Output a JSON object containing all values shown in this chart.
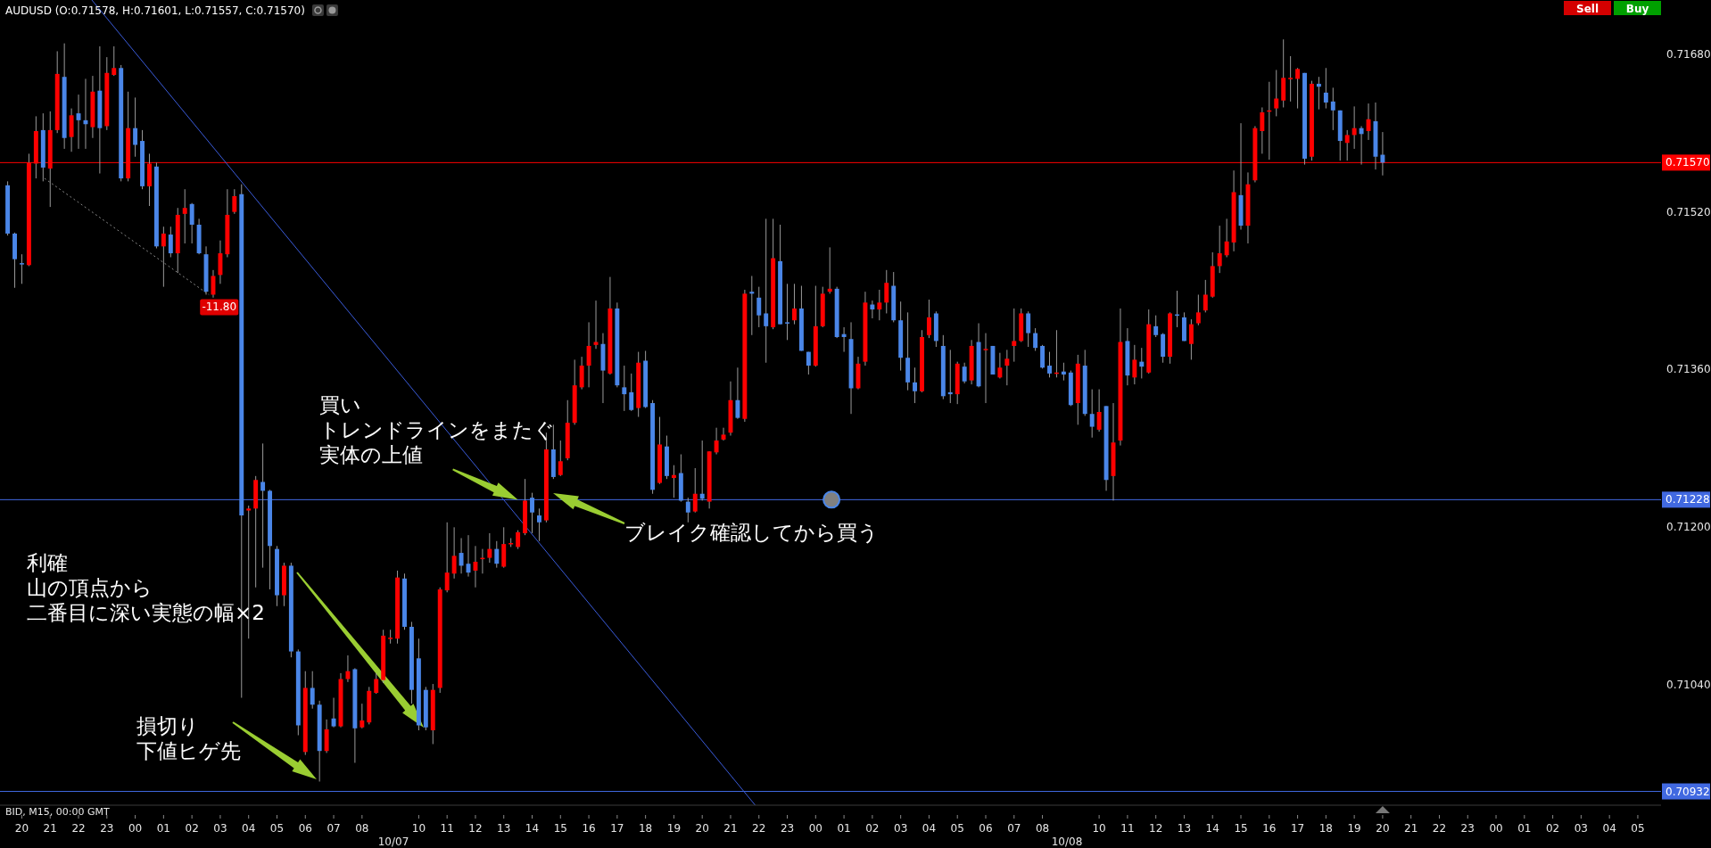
{
  "chart_data": {
    "type": "candlestick",
    "title": "AUDUSD (O:0.71578, H:0.71601, L:0.71557, C:0.71570)",
    "colors": [
      "#4a86e8",
      "#4a86e8",
      "#4a86e8",
      "#ff0000",
      "#ff0000",
      "#4a86e8",
      "#ff0000",
      "#ff0000",
      "#4a86e8",
      "#ff0000",
      "#4a86e8",
      "#4a86e8",
      "#ff0000",
      "#4a86e8",
      "#ff0000",
      "#ff0000",
      "#4a86e8",
      "#ff0000",
      "#4a86e8",
      "#4a86e8",
      "#ff0000",
      "#4a86e8",
      "#ff0000",
      "#4a86e8",
      "#ff0000",
      "#ff0000",
      "#4a86e8",
      "#4a86e8",
      "#4a86e8",
      "#ff0000",
      "#ff0000",
      "#ff0000",
      "#ff0000",
      "#4a86e8",
      "#ff0000",
      "#ff0000",
      "#4a86e8",
      "#4a86e8",
      "#4a86e8",
      "#ff0000",
      "#4a86e8",
      "#4a86e8",
      "#ff0000",
      "#4a86e8",
      "#4a86e8",
      "#ff0000",
      "#4a86e8",
      "#ff0000",
      "#ff0000",
      "#4a86e8",
      "#ff0000",
      "#ff0000",
      "#ff0000",
      "#ff0000",
      "#ff0000",
      "#ff0000",
      "#4a86e8",
      "#4a86e8",
      "#4a86e8",
      "#4a86e8",
      "#ff0000",
      "#ff0000",
      "#ff0000",
      "#ff0000",
      "#4a86e8",
      "#4a86e8",
      "#ff0000",
      "#ff0000",
      "#ff0000",
      "#4a86e8",
      "#ff0000",
      "#ff0000",
      "#ff0000",
      "#ff0000",
      "#4a86e8",
      "#4a86e8",
      "#ff0000",
      "#4a86e8",
      "#ff0000",
      "#ff0000",
      "#ff0000",
      "#ff0000",
      "#ff0000",
      "#ff0000",
      "#4a86e8",
      "#ff0000",
      "#4a86e8",
      "#4a86e8",
      "#4a86e8",
      "#ff0000",
      "#4a86e8",
      "#4a86e8",
      "#ff0000",
      "#4a86e8",
      "#ff0000",
      "#4a86e8",
      "#4a86e8",
      "#ff0000",
      "#4a86e8",
      "#ff0000",
      "#ff0000",
      "#ff0000",
      "#ff0000",
      "#4a86e8",
      "#ff0000",
      "#4a86e8",
      "#4a86e8",
      "#4a86e8",
      "#ff0000",
      "#4a86e8",
      "#4a86e8",
      "#ff0000",
      "#4a86e8",
      "#4a86e8",
      "#ff0000",
      "#ff0000",
      "#ff0000",
      "#4a86e8",
      "#4a86e8",
      "#4a86e8",
      "#ff0000",
      "#ff0000",
      "#4a86e8",
      "#ff0000",
      "#ff0000",
      "#4a86e8",
      "#4a86e8",
      "#4a86e8",
      "#4a86e8",
      "#ff0000",
      "#ff0000",
      "#4a86e8",
      "#4a86e8",
      "#4a86e8",
      "#ff0000",
      "#4a86e8",
      "#ff0000",
      "#4a86e8",
      "#ff0000",
      "#4a86e8",
      "#ff0000",
      "#ff0000",
      "#ff0000",
      "#ff0000",
      "#4a86e8",
      "#4a86e8",
      "#4a86e8",
      "#4a86e8",
      "#ff0000",
      "#4a86e8",
      "#4a86e8",
      "#ff0000",
      "#4a86e8",
      "#4a86e8",
      "#ff0000",
      "#4a86e8",
      "#ff0000",
      "#ff0000",
      "#4a86e8",
      "#ff0000",
      "#4a86e8",
      "#ff0000",
      "#4a86e8",
      "#4a86e8",
      "#ff0000",
      "#4a86e8",
      "#4a86e8",
      "#ff0000",
      "#ff0000",
      "#ff0000",
      "#ff0000",
      "#ff0000",
      "#ff0000",
      "#ff0000",
      "#4a86e8",
      "#ff0000",
      "#ff0000",
      "#ff0000",
      "#ff0000",
      "#ff0000",
      "#ff0000",
      "#ff0000",
      "#ff0000",
      "#4a86e8",
      "#ff0000",
      "#4a86e8",
      "#4a86e8",
      "#4a86e8",
      "#4a86e8",
      "#ff0000",
      "#ff0000",
      "#4a86e8",
      "#ff0000",
      "#4a86e8",
      "#4a86e8"
    ],
    "xlim": [
      19.23,
      77.82
    ],
    "ylim": [
      0.70918,
      0.71735
    ],
    "yticks": [
      {
        "value": 0.7168,
        "label": "0.71680"
      },
      {
        "value": 0.7152,
        "label": "0.71520"
      },
      {
        "value": 0.7136,
        "label": "0.71360"
      },
      {
        "value": 0.712,
        "label": "0.71200"
      },
      {
        "value": 0.7104,
        "label": "0.71040"
      }
    ],
    "xticks": [
      {
        "value": 20,
        "label": "20"
      },
      {
        "value": 21,
        "label": "21"
      },
      {
        "value": 22,
        "label": "22"
      },
      {
        "value": 23,
        "label": "23"
      },
      {
        "value": 24,
        "label": "00"
      },
      {
        "value": 25,
        "label": "01"
      },
      {
        "value": 26,
        "label": "02"
      },
      {
        "value": 27,
        "label": "03"
      },
      {
        "value": 28,
        "label": "04"
      },
      {
        "value": 29,
        "label": "05"
      },
      {
        "value": 30,
        "label": "06"
      },
      {
        "value": 31,
        "label": "07"
      },
      {
        "value": 32,
        "label": "08"
      },
      {
        "value": 34,
        "label": "10"
      },
      {
        "value": 35,
        "label": "11"
      },
      {
        "value": 36,
        "label": "12"
      },
      {
        "value": 37,
        "label": "13"
      },
      {
        "value": 38,
        "label": "14"
      },
      {
        "value": 39,
        "label": "15"
      },
      {
        "value": 40,
        "label": "16"
      },
      {
        "value": 41,
        "label": "17"
      },
      {
        "value": 42,
        "label": "18"
      },
      {
        "value": 43,
        "label": "19"
      },
      {
        "value": 44,
        "label": "20"
      },
      {
        "value": 45,
        "label": "21"
      },
      {
        "value": 46,
        "label": "22"
      },
      {
        "value": 47,
        "label": "23"
      },
      {
        "value": 48,
        "label": "00"
      },
      {
        "value": 49,
        "label": "01"
      },
      {
        "value": 50,
        "label": "02"
      },
      {
        "value": 51,
        "label": "03"
      },
      {
        "value": 52,
        "label": "04"
      },
      {
        "value": 53,
        "label": "05"
      },
      {
        "value": 54,
        "label": "06"
      },
      {
        "value": 55,
        "label": "07"
      },
      {
        "value": 56,
        "label": "08"
      },
      {
        "value": 58,
        "label": "10"
      },
      {
        "value": 59,
        "label": "11"
      },
      {
        "value": 60,
        "label": "12"
      },
      {
        "value": 61,
        "label": "13"
      },
      {
        "value": 62,
        "label": "14"
      },
      {
        "value": 63,
        "label": "15"
      },
      {
        "value": 64,
        "label": "16"
      },
      {
        "value": 65,
        "label": "17"
      },
      {
        "value": 66,
        "label": "18"
      },
      {
        "value": 67,
        "label": "19"
      },
      {
        "value": 68,
        "label": "20"
      },
      {
        "value": 69,
        "label": "21"
      },
      {
        "value": 70,
        "label": "22"
      },
      {
        "value": 71,
        "label": "23"
      },
      {
        "value": 72,
        "label": "00"
      },
      {
        "value": 73,
        "label": "01"
      },
      {
        "value": 74,
        "label": "02"
      },
      {
        "value": 75,
        "label": "03"
      },
      {
        "value": 76,
        "label": "04"
      },
      {
        "value": 77,
        "label": "05"
      }
    ],
    "x": [
      19.5,
      19.75,
      20,
      20.25,
      20.5,
      20.75,
      21,
      21.25,
      21.5,
      21.75,
      22,
      22.25,
      22.5,
      22.75,
      23,
      23.25,
      23.5,
      23.75,
      24,
      24.25,
      24.5,
      24.75,
      25,
      25.25,
      25.5,
      25.75,
      26,
      26.25,
      26.5,
      26.75,
      27,
      27.25,
      27.5,
      27.75,
      28,
      28.25,
      28.5,
      28.75,
      29,
      29.25,
      29.5,
      29.75,
      30,
      30.25,
      30.5,
      30.75,
      31,
      31.25,
      31.5,
      31.75,
      32,
      32.25,
      32.5,
      32.75,
      33,
      33.25,
      33.5,
      33.75,
      34,
      34.25,
      34.5,
      34.75,
      35,
      35.25,
      35.5,
      35.75,
      36,
      36.25,
      36.5,
      36.75,
      37,
      37.25,
      37.5,
      37.75,
      38,
      38.25,
      38.5,
      38.75,
      39,
      39.25,
      39.5,
      39.75,
      40,
      40.25,
      40.5,
      40.75,
      41,
      41.25,
      41.5,
      41.75,
      42,
      42.25,
      42.5,
      42.75,
      43,
      43.25,
      43.5,
      43.75,
      44,
      44.25,
      44.5,
      44.75,
      45,
      45.25,
      45.5,
      45.75,
      46,
      46.25,
      46.5,
      46.75,
      47,
      47.25,
      47.5,
      47.75,
      48,
      48.25,
      48.5,
      48.75,
      49,
      49.25,
      49.5,
      49.75,
      50,
      50.25,
      50.5,
      50.75,
      51,
      51.25,
      51.5,
      51.75,
      52,
      52.25,
      52.5,
      52.75,
      53,
      53.25,
      53.5,
      53.75,
      54,
      54.25,
      54.5,
      54.75,
      55,
      55.25,
      55.5,
      55.75,
      56,
      56.25,
      56.5,
      56.75,
      57,
      57.25,
      57.5,
      57.75,
      58,
      58.25,
      58.5,
      58.75,
      59,
      59.25,
      59.5,
      59.75,
      60,
      60.25,
      60.5,
      60.75,
      61,
      61.25,
      61.5,
      61.75,
      62,
      62.25,
      62.5,
      62.75,
      63,
      63.25,
      63.5,
      63.75,
      64,
      64.25,
      64.5,
      64.75,
      65,
      65.25,
      65.5,
      65.75,
      66,
      66.25,
      66.5,
      66.75,
      67,
      67.25,
      67.5,
      67.75,
      68
    ],
    "ohlc": [
      [
        0.71547,
        0.71551,
        0.71496,
        0.71498
      ],
      [
        0.71498,
        0.71499,
        0.71443,
        0.71472
      ],
      [
        0.71468,
        0.71477,
        0.71447,
        0.71468
      ],
      [
        0.71466,
        0.71579,
        0.71465,
        0.7157
      ],
      [
        0.71569,
        0.71617,
        0.71554,
        0.71602
      ],
      [
        0.71603,
        0.7162,
        0.71551,
        0.71565
      ],
      [
        0.71564,
        0.71622,
        0.71525,
        0.71603
      ],
      [
        0.71603,
        0.71683,
        0.716,
        0.7166
      ],
      [
        0.71657,
        0.71691,
        0.71584,
        0.71595
      ],
      [
        0.71596,
        0.71625,
        0.71581,
        0.71618
      ],
      [
        0.7162,
        0.71639,
        0.71584,
        0.71613
      ],
      [
        0.71613,
        0.71655,
        0.71584,
        0.71609
      ],
      [
        0.71606,
        0.71658,
        0.71595,
        0.71642
      ],
      [
        0.71643,
        0.71688,
        0.71559,
        0.71605
      ],
      [
        0.71607,
        0.71677,
        0.71603,
        0.71661
      ],
      [
        0.71659,
        0.71688,
        0.71658,
        0.71666
      ],
      [
        0.71666,
        0.71669,
        0.71551,
        0.71554
      ],
      [
        0.71554,
        0.71642,
        0.71551,
        0.71605
      ],
      [
        0.71605,
        0.71636,
        0.71576,
        0.71588
      ],
      [
        0.71592,
        0.71603,
        0.71543,
        0.71546
      ],
      [
        0.71546,
        0.71579,
        0.71526,
        0.71569
      ],
      [
        0.71566,
        0.7157,
        0.71483,
        0.71485
      ],
      [
        0.71485,
        0.71505,
        0.71444,
        0.71498
      ],
      [
        0.71497,
        0.71505,
        0.71474,
        0.71478
      ],
      [
        0.71478,
        0.71524,
        0.71458,
        0.71517
      ],
      [
        0.71518,
        0.71543,
        0.71488,
        0.71524
      ],
      [
        0.71528,
        0.71529,
        0.71488,
        0.71507
      ],
      [
        0.71507,
        0.71513,
        0.71477,
        0.71478
      ],
      [
        0.71477,
        0.71485,
        0.71436,
        0.71439
      ],
      [
        0.71436,
        0.71461,
        0.71433,
        0.71455
      ],
      [
        0.71456,
        0.71491,
        0.71447,
        0.71478
      ],
      [
        0.71477,
        0.71543,
        0.71474,
        0.71517
      ],
      [
        0.7152,
        0.71543,
        0.71518,
        0.71536
      ],
      [
        0.71538,
        0.71548,
        0.71027,
        0.71212
      ],
      [
        0.71217,
        0.71222,
        0.71087,
        0.71219
      ],
      [
        0.71219,
        0.71252,
        0.71139,
        0.71248
      ],
      [
        0.71246,
        0.71285,
        0.71159,
        0.71237
      ],
      [
        0.71237,
        0.71238,
        0.71137,
        0.71181
      ],
      [
        0.71178,
        0.71181,
        0.7112,
        0.71131
      ],
      [
        0.71131,
        0.71164,
        0.7112,
        0.71161
      ],
      [
        0.71161,
        0.71164,
        0.71068,
        0.71074
      ],
      [
        0.71074,
        0.71076,
        0.70989,
        0.70999
      ],
      [
        0.70972,
        0.71054,
        0.70969,
        0.71037
      ],
      [
        0.71037,
        0.71054,
        0.71016,
        0.7102
      ],
      [
        0.7102,
        0.71024,
        0.70942,
        0.70973
      ],
      [
        0.70973,
        0.71005,
        0.70971,
        0.70995
      ],
      [
        0.71006,
        0.71027,
        0.70997,
        0.70998
      ],
      [
        0.70998,
        0.71052,
        0.70997,
        0.71046
      ],
      [
        0.71046,
        0.7107,
        0.71043,
        0.71054
      ],
      [
        0.71056,
        0.71057,
        0.70961,
        0.70996
      ],
      [
        0.70997,
        0.71021,
        0.70996,
        0.71004
      ],
      [
        0.71002,
        0.71038,
        0.71,
        0.71034
      ],
      [
        0.71032,
        0.71052,
        0.71031,
        0.71046
      ],
      [
        0.71045,
        0.71096,
        0.71042,
        0.7109
      ],
      [
        0.71087,
        0.71096,
        0.71082,
        0.71088
      ],
      [
        0.71087,
        0.71156,
        0.71082,
        0.71149
      ],
      [
        0.71148,
        0.71153,
        0.71096,
        0.71099
      ],
      [
        0.71099,
        0.71104,
        0.71021,
        0.71035
      ],
      [
        0.71067,
        0.71087,
        0.70994,
        0.70999
      ],
      [
        0.71035,
        0.71038,
        0.70994,
        0.70997
      ],
      [
        0.70994,
        0.71041,
        0.7098,
        0.71035
      ],
      [
        0.71037,
        0.71139,
        0.71032,
        0.71137
      ],
      [
        0.71136,
        0.71205,
        0.71134,
        0.71154
      ],
      [
        0.71153,
        0.712,
        0.71148,
        0.71171
      ],
      [
        0.71174,
        0.71189,
        0.71153,
        0.71161
      ],
      [
        0.71163,
        0.71192,
        0.7115,
        0.71154
      ],
      [
        0.71156,
        0.71181,
        0.71139,
        0.71165
      ],
      [
        0.71168,
        0.71178,
        0.71153,
        0.71169
      ],
      [
        0.71169,
        0.71194,
        0.71164,
        0.71178
      ],
      [
        0.71178,
        0.71186,
        0.71159,
        0.71163
      ],
      [
        0.7116,
        0.712,
        0.71159,
        0.71183
      ],
      [
        0.71183,
        0.71189,
        0.7118,
        0.71184
      ],
      [
        0.7118,
        0.71197,
        0.71178,
        0.71195
      ],
      [
        0.71194,
        0.71249,
        0.71192,
        0.71227
      ],
      [
        0.7123,
        0.71235,
        0.71194,
        0.71215
      ],
      [
        0.71212,
        0.71219,
        0.71186,
        0.71205
      ],
      [
        0.71207,
        0.71296,
        0.71205,
        0.71279
      ],
      [
        0.71279,
        0.71304,
        0.71249,
        0.71251
      ],
      [
        0.71253,
        0.71288,
        0.71252,
        0.71267
      ],
      [
        0.7127,
        0.71329,
        0.71268,
        0.71306
      ],
      [
        0.71306,
        0.7137,
        0.71304,
        0.71344
      ],
      [
        0.71342,
        0.71373,
        0.7134,
        0.71364
      ],
      [
        0.71364,
        0.71408,
        0.71342,
        0.71384
      ],
      [
        0.71385,
        0.7143,
        0.71381,
        0.71388
      ],
      [
        0.71386,
        0.71397,
        0.71326,
        0.71359
      ],
      [
        0.71356,
        0.71454,
        0.71355,
        0.71422
      ],
      [
        0.71422,
        0.71428,
        0.71342,
        0.71344
      ],
      [
        0.71342,
        0.71364,
        0.71318,
        0.71335
      ],
      [
        0.71337,
        0.71356,
        0.71318,
        0.71319
      ],
      [
        0.71321,
        0.71378,
        0.71312,
        0.71367
      ],
      [
        0.71369,
        0.71379,
        0.71321,
        0.71322
      ],
      [
        0.71326,
        0.71329,
        0.71234,
        0.71238
      ],
      [
        0.71245,
        0.71312,
        0.71244,
        0.71284
      ],
      [
        0.71282,
        0.71293,
        0.71249,
        0.71252
      ],
      [
        0.7125,
        0.71263,
        0.7123,
        0.71253
      ],
      [
        0.71255,
        0.71274,
        0.71226,
        0.71227
      ],
      [
        0.71226,
        0.7123,
        0.71205,
        0.71215
      ],
      [
        0.71216,
        0.7126,
        0.71215,
        0.71234
      ],
      [
        0.71234,
        0.71288,
        0.71227,
        0.71229
      ],
      [
        0.71226,
        0.71277,
        0.71219,
        0.71277
      ],
      [
        0.71276,
        0.71301,
        0.71274,
        0.71288
      ],
      [
        0.71289,
        0.71301,
        0.71288,
        0.71294
      ],
      [
        0.71296,
        0.71348,
        0.71293,
        0.71329
      ],
      [
        0.71329,
        0.71362,
        0.7131,
        0.71311
      ],
      [
        0.7131,
        0.71441,
        0.71307,
        0.71437
      ],
      [
        0.71439,
        0.71455,
        0.71395,
        0.71437
      ],
      [
        0.71433,
        0.71444,
        0.71403,
        0.71415
      ],
      [
        0.71417,
        0.71513,
        0.71367,
        0.71404
      ],
      [
        0.71403,
        0.71513,
        0.71401,
        0.71473
      ],
      [
        0.7147,
        0.71507,
        0.71406,
        0.71406
      ],
      [
        0.71408,
        0.71447,
        0.7139,
        0.71408
      ],
      [
        0.7141,
        0.71447,
        0.71406,
        0.71422
      ],
      [
        0.71422,
        0.71445,
        0.71379,
        0.71379
      ],
      [
        0.71378,
        0.71378,
        0.71355,
        0.71364
      ],
      [
        0.71364,
        0.71445,
        0.71363,
        0.71404
      ],
      [
        0.71404,
        0.71444,
        0.71403,
        0.71437
      ],
      [
        0.71439,
        0.71484,
        0.71437,
        0.71442
      ],
      [
        0.71442,
        0.71444,
        0.71392,
        0.71393
      ],
      [
        0.71396,
        0.71403,
        0.71378,
        0.71393
      ],
      [
        0.71391,
        0.71408,
        0.71315,
        0.71341
      ],
      [
        0.71341,
        0.71373,
        0.7134,
        0.71366
      ],
      [
        0.71368,
        0.71439,
        0.71364,
        0.71428
      ],
      [
        0.71426,
        0.7143,
        0.71412,
        0.71421
      ],
      [
        0.71421,
        0.71441,
        0.7141,
        0.71428
      ],
      [
        0.71428,
        0.71461,
        0.71417,
        0.71448
      ],
      [
        0.71445,
        0.71459,
        0.71408,
        0.7141
      ],
      [
        0.7141,
        0.71429,
        0.71359,
        0.71372
      ],
      [
        0.71372,
        0.71418,
        0.71339,
        0.71347
      ],
      [
        0.71347,
        0.71362,
        0.71326,
        0.71338
      ],
      [
        0.71338,
        0.714,
        0.71337,
        0.71393
      ],
      [
        0.71395,
        0.71431,
        0.71392,
        0.71413
      ],
      [
        0.71417,
        0.71419,
        0.71383,
        0.71389
      ],
      [
        0.71384,
        0.71395,
        0.7133,
        0.71333
      ],
      [
        0.71337,
        0.7138,
        0.71326,
        0.71335
      ],
      [
        0.71335,
        0.71368,
        0.71325,
        0.71366
      ],
      [
        0.71363,
        0.71367,
        0.71346,
        0.71348
      ],
      [
        0.71349,
        0.7139,
        0.71345,
        0.71384
      ],
      [
        0.71388,
        0.71407,
        0.71342,
        0.71343
      ],
      [
        0.71381,
        0.71397,
        0.71326,
        0.7138
      ],
      [
        0.71384,
        0.71384,
        0.71355,
        0.71355
      ],
      [
        0.71352,
        0.71377,
        0.71351,
        0.71362
      ],
      [
        0.71364,
        0.7138,
        0.71344,
        0.71371
      ],
      [
        0.71384,
        0.71422,
        0.71368,
        0.71389
      ],
      [
        0.71389,
        0.71422,
        0.71388,
        0.71417
      ],
      [
        0.71417,
        0.71419,
        0.71383,
        0.71397
      ],
      [
        0.71397,
        0.71402,
        0.71379,
        0.71382
      ],
      [
        0.71384,
        0.71385,
        0.71361,
        0.71362
      ],
      [
        0.71364,
        0.71378,
        0.71352,
        0.71356
      ],
      [
        0.71356,
        0.714,
        0.71352,
        0.71357
      ],
      [
        0.71358,
        0.71367,
        0.71349,
        0.71355
      ],
      [
        0.71357,
        0.71359,
        0.71323,
        0.71324
      ],
      [
        0.71326,
        0.71375,
        0.71304,
        0.71366
      ],
      [
        0.71364,
        0.7138,
        0.71313,
        0.71315
      ],
      [
        0.71315,
        0.7134,
        0.71291,
        0.71302
      ],
      [
        0.71299,
        0.7134,
        0.71297,
        0.71317
      ],
      [
        0.71323,
        0.71323,
        0.71237,
        0.71248
      ],
      [
        0.71252,
        0.71326,
        0.71227,
        0.71286
      ],
      [
        0.71288,
        0.71422,
        0.71283,
        0.71388
      ],
      [
        0.71389,
        0.71402,
        0.71344,
        0.71354
      ],
      [
        0.71352,
        0.71385,
        0.71345,
        0.7137
      ],
      [
        0.71368,
        0.71382,
        0.71351,
        0.71363
      ],
      [
        0.71357,
        0.71421,
        0.71356,
        0.71406
      ],
      [
        0.71404,
        0.71415,
        0.71393,
        0.71395
      ],
      [
        0.71396,
        0.71397,
        0.71367,
        0.71373
      ],
      [
        0.71373,
        0.71418,
        0.71366,
        0.71417
      ],
      [
        0.71416,
        0.7144,
        0.71403,
        0.71416
      ],
      [
        0.71413,
        0.71418,
        0.71389,
        0.71389
      ],
      [
        0.71386,
        0.71411,
        0.7137,
        0.71406
      ],
      [
        0.71407,
        0.71436,
        0.71405,
        0.71418
      ],
      [
        0.7142,
        0.71451,
        0.71418,
        0.71436
      ],
      [
        0.71434,
        0.71479,
        0.71433,
        0.71465
      ],
      [
        0.71465,
        0.71506,
        0.71458,
        0.71478
      ],
      [
        0.71476,
        0.71513,
        0.71474,
        0.7149
      ],
      [
        0.71489,
        0.71562,
        0.7148,
        0.7154
      ],
      [
        0.71537,
        0.7161,
        0.71502,
        0.71506
      ],
      [
        0.71506,
        0.7156,
        0.71488,
        0.71548
      ],
      [
        0.71552,
        0.71607,
        0.7155,
        0.71605
      ],
      [
        0.71602,
        0.71626,
        0.71579,
        0.71621
      ],
      [
        0.71623,
        0.71652,
        0.71573,
        0.71623
      ],
      [
        0.71625,
        0.71664,
        0.71617,
        0.71635
      ],
      [
        0.71633,
        0.71695,
        0.71626,
        0.71656
      ],
      [
        0.71656,
        0.71678,
        0.71632,
        0.71656
      ],
      [
        0.71655,
        0.71666,
        0.71625,
        0.71665
      ],
      [
        0.71661,
        0.71661,
        0.71568,
        0.71574
      ],
      [
        0.71576,
        0.71653,
        0.71572,
        0.7165
      ],
      [
        0.7165,
        0.71657,
        0.71624,
        0.71647
      ],
      [
        0.71641,
        0.71666,
        0.71625,
        0.71631
      ],
      [
        0.71632,
        0.71646,
        0.71603,
        0.71623
      ],
      [
        0.71623,
        0.71623,
        0.71572,
        0.71592
      ],
      [
        0.7159,
        0.71603,
        0.71572,
        0.71598
      ],
      [
        0.71598,
        0.71627,
        0.71584,
        0.71605
      ],
      [
        0.71605,
        0.71607,
        0.71568,
        0.71599
      ],
      [
        0.71602,
        0.7163,
        0.71593,
        0.71614
      ],
      [
        0.71612,
        0.71631,
        0.71563,
        0.71576
      ],
      [
        0.71578,
        0.71601,
        0.71557,
        0.7157
      ]
    ],
    "series": [
      {
        "type": "line",
        "x": [
          22.47,
          45.87
        ],
        "values": [
          0.71735,
          0.70918
        ],
        "color": "#3a5bd9",
        "line_style": "solid"
      },
      {
        "type": "line",
        "x": [
          20.8,
          26.6
        ],
        "values": [
          0.71554,
          0.71436
        ],
        "color": "#8a8a8a",
        "line_style": "dotted"
      },
      {
        "type": "scatter",
        "x": [
          48.56
        ],
        "values": [
          0.71228
        ],
        "color": "#808080",
        "marker": "circle"
      }
    ],
    "ref_lines": [
      {
        "axis": "y",
        "value": 0.7157,
        "label": "0.71570",
        "color": "#ff0000"
      },
      {
        "axis": "y",
        "value": 0.71228,
        "label": "0.71228",
        "color": "#4169e1"
      },
      {
        "axis": "y",
        "value": 0.70932,
        "label": "0.70932",
        "color": "#4169e1"
      }
    ],
    "annotations": [
      "BID, M15, 00:00 GMT",
      "Sell",
      "Buy",
      "10/07",
      "10/08",
      {
        "text": "-11.80",
        "x": 26.6,
        "y": 0.71436
      },
      "損切り下値ヒゲ先",
      "利確山の頂点から二番目に深い実態の幅×2",
      {
        "text": "買いトレンドラインをまたぐ実体の上値",
        "x": 37.5,
        "y": 0.71228
      },
      "ブレイク確認してから買う"
    ]
  }
}
